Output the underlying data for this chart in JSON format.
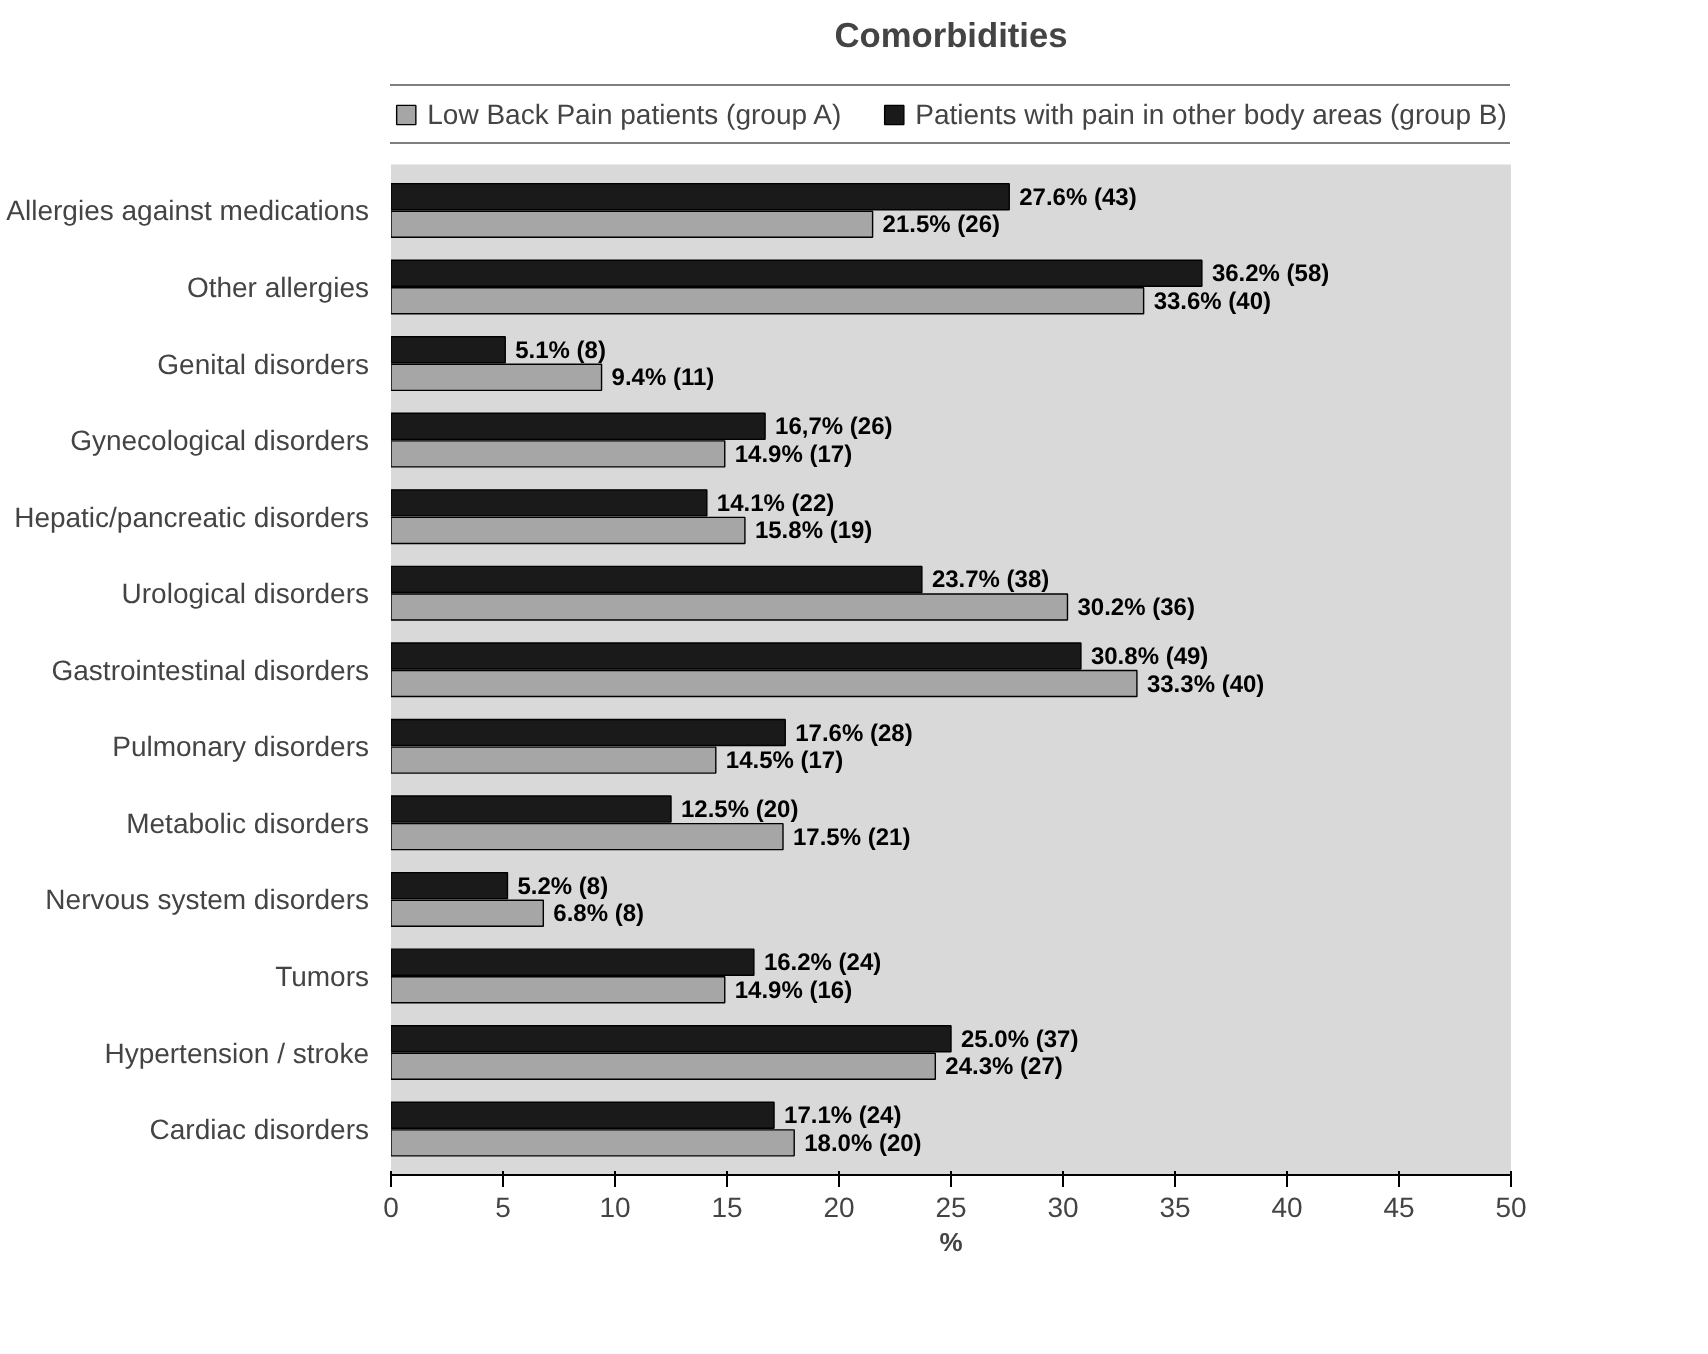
{
  "chart_data": {
    "type": "bar",
    "orientation": "horizontal",
    "title": "Comorbidities",
    "xlabel": "%",
    "categories": [
      "Allergies against medications",
      "Other allergies",
      "Genital disorders",
      "Gynecological disorders",
      "Hepatic/pancreatic disorders",
      "Urological disorders",
      "Gastrointestinal disorders",
      "Pulmonary disorders",
      "Metabolic disorders",
      "Nervous system disorders",
      "Tumors",
      "Hypertension / stroke",
      "Cardiac disorders"
    ],
    "series": [
      {
        "name": "Low Back Pain patients (group A)",
        "color": "#a6a6a6",
        "values": [
          21.5,
          33.6,
          9.4,
          14.9,
          15.8,
          30.2,
          33.3,
          14.5,
          17.5,
          6.8,
          14.9,
          24.3,
          18.0
        ],
        "value_labels": [
          "21.5% (26)",
          "33.6% (40)",
          "9.4% (11)",
          "14.9% (17)",
          "15.8% (19)",
          "30.2% (36)",
          "33.3% (40)",
          "14.5% (17)",
          "17.5% (21)",
          "6.8% (8)",
          "14.9% (16)",
          "24.3% (27)",
          "18.0% (20)"
        ]
      },
      {
        "name": "Patients with pain in other body areas (group B)",
        "color": "#1a1a1a",
        "values": [
          27.6,
          36.2,
          5.1,
          16.7,
          14.1,
          23.7,
          30.8,
          17.6,
          12.5,
          5.2,
          16.2,
          25.0,
          17.1
        ],
        "value_labels": [
          "27.6% (43)",
          "36.2% (58)",
          "5.1% (8)",
          "16,7% (26)",
          "14.1% (22)",
          "23.7% (38)",
          "30.8% (49)",
          "17.6% (28)",
          "12.5% (20)",
          "5.2% (8)",
          "16.2% (24)",
          "25.0% (37)",
          "17.1% (24)"
        ]
      }
    ],
    "xlim": [
      0,
      50
    ],
    "xticks": [
      0,
      5,
      10,
      15,
      20,
      25,
      30,
      35,
      40,
      45,
      50
    ],
    "grid": false,
    "legend": "top"
  }
}
